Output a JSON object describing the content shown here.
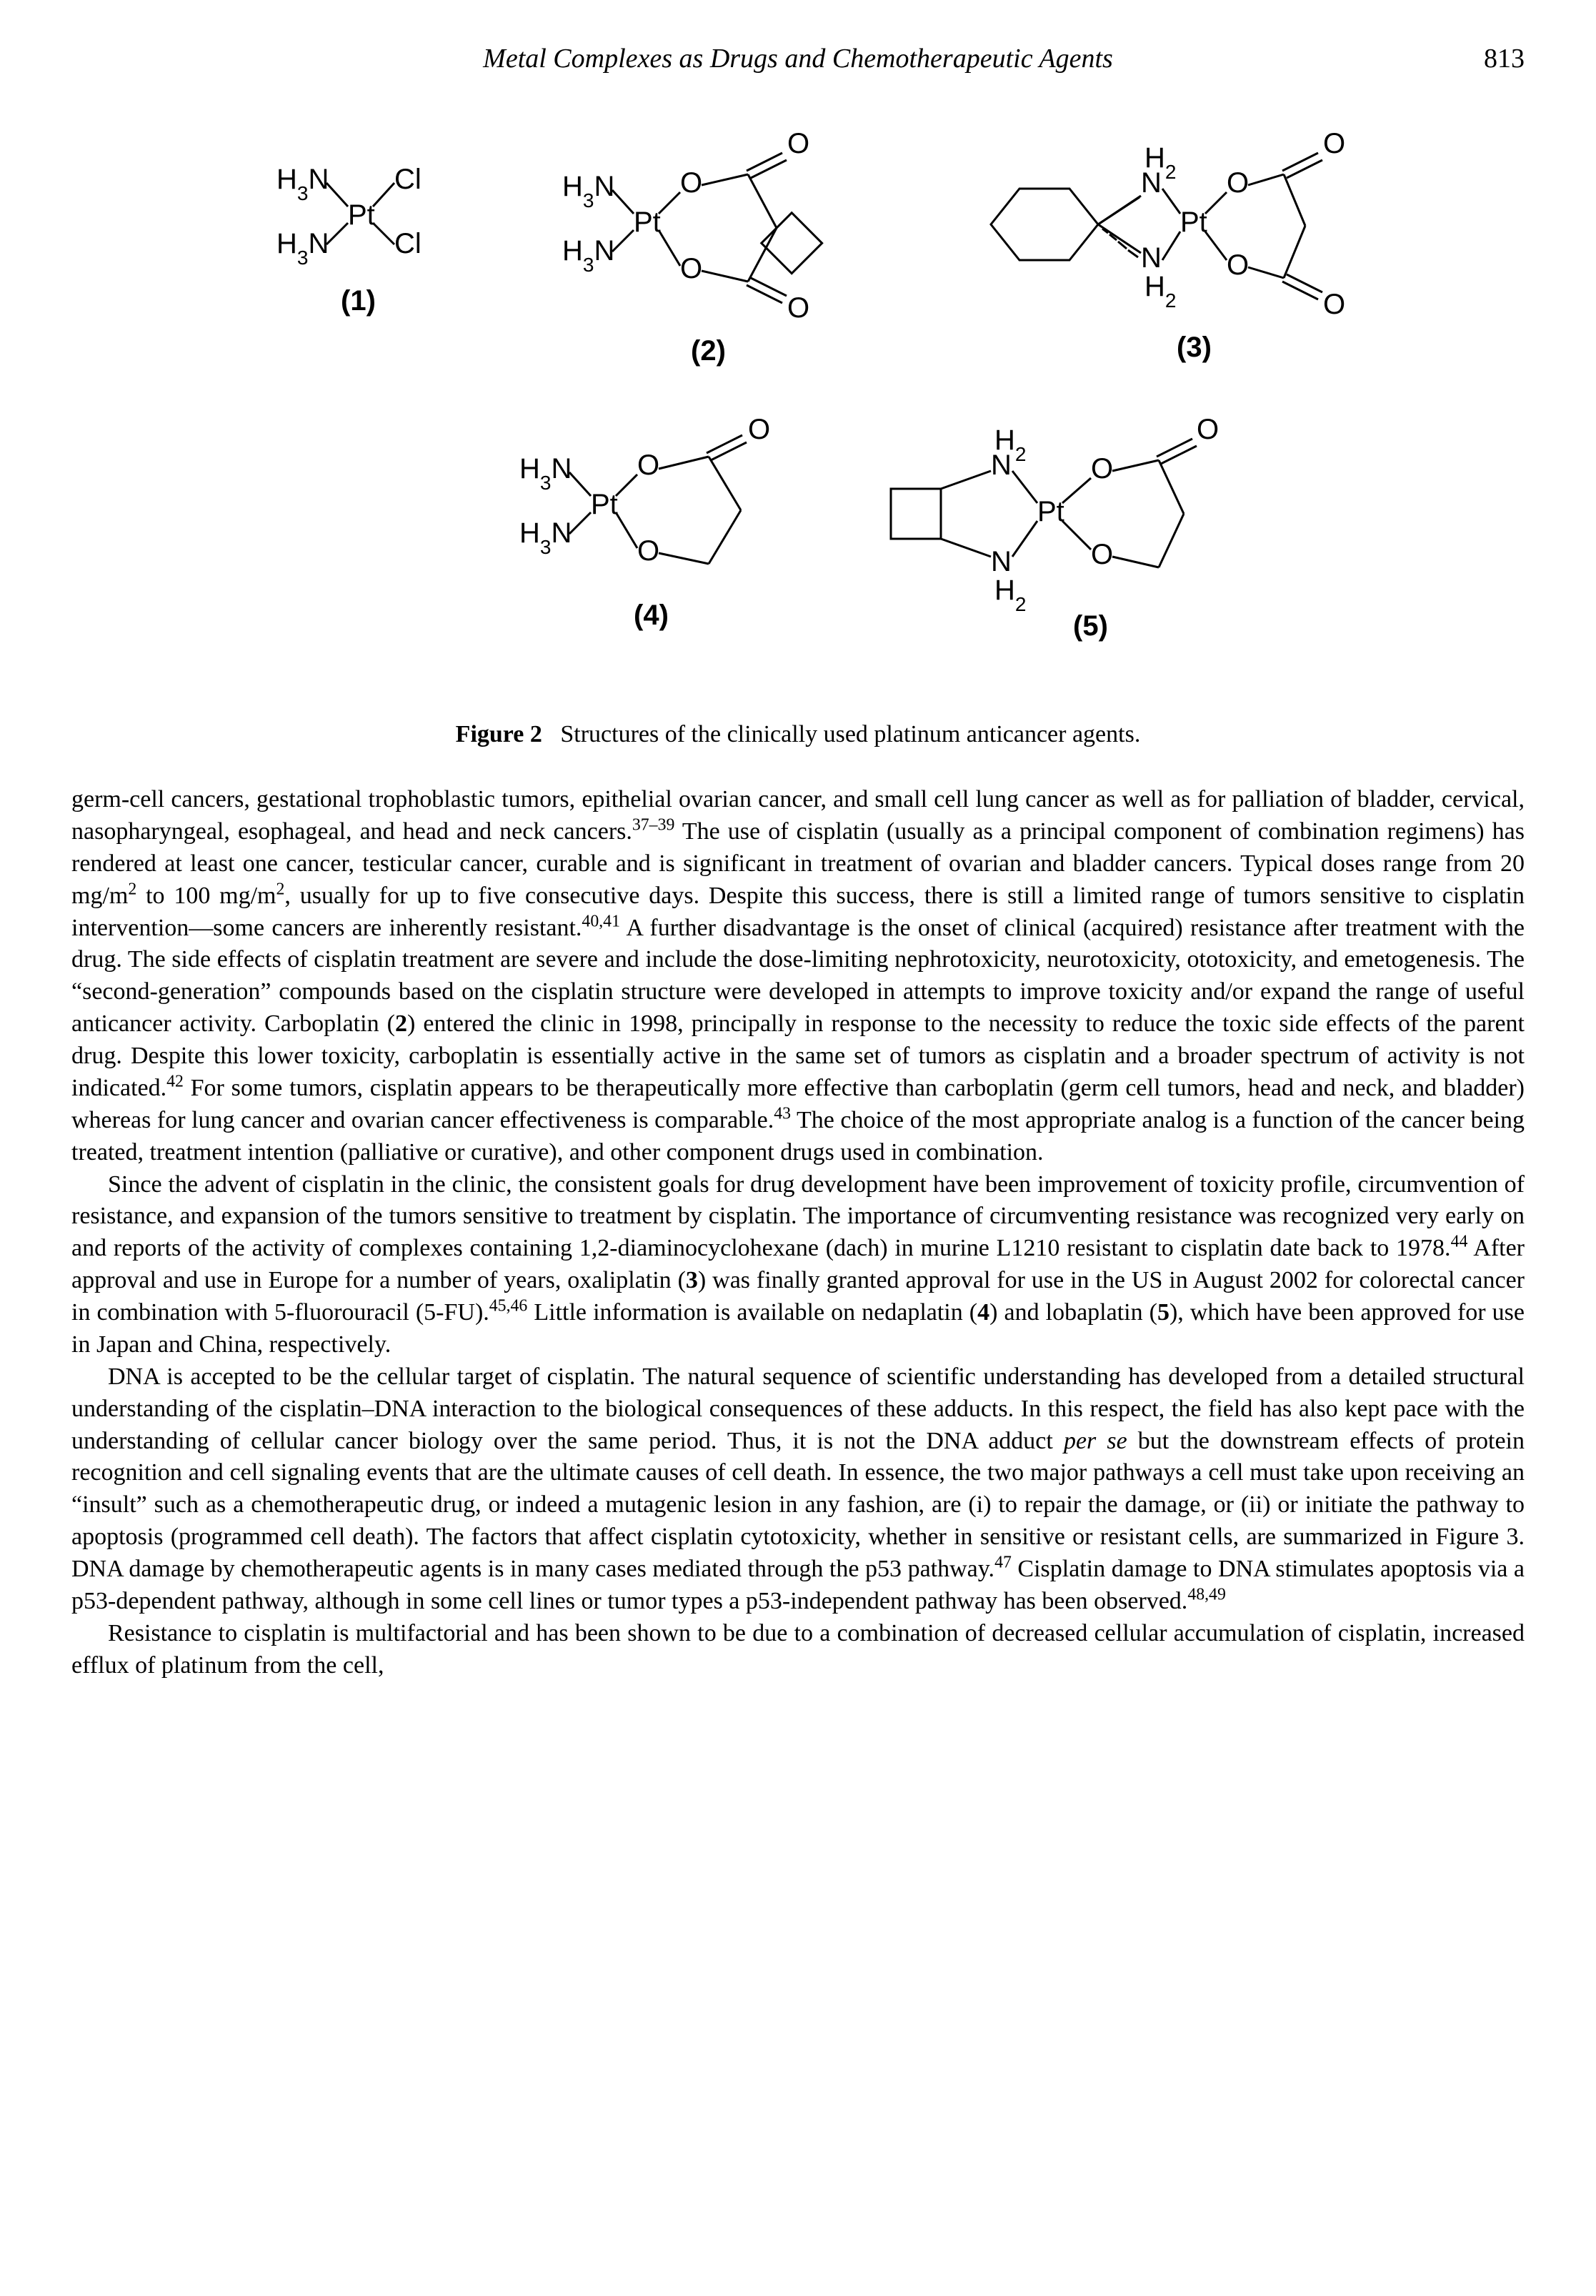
{
  "header": {
    "running_title": "Metal Complexes as Drugs and Chemotherapeutic Agents",
    "page_number": "813"
  },
  "figure": {
    "caption_label": "Figure 2",
    "caption_text": "Structures of the clinically used platinum anticancer agents.",
    "label_font": {
      "family": "Helvetica, Arial, sans-serif",
      "weight": "normal"
    },
    "bond_stroke": "#000000",
    "bond_width": 3,
    "label_color": "#000000",
    "labels": {
      "formula_H3N": "H3N",
      "Cl": "Cl",
      "Pt": "Pt",
      "O": "O",
      "N": "N",
      "H2": "H2"
    },
    "compound_labels": [
      "(1)",
      "(2)",
      "(3)",
      "(4)",
      "(5)"
    ],
    "row1": {
      "count": 3
    },
    "row2": {
      "count": 2
    }
  },
  "text": {
    "para1_html": "germ-cell cancers, gestational trophoblastic tumors, epithelial ovarian cancer, and small cell lung cancer as well as for palliation of bladder, cervical, nasopharyngeal, esophageal, and head and neck cancers.<sup>37–39</sup> The use of cisplatin (usually as a principal component of combination regimens) has rendered at least one cancer, testicular cancer, curable and is significant in treatment of ovarian and bladder cancers. Typical doses range from 20 mg/m<sup>2</sup> to 100 mg/m<sup>2</sup>, usually for up to five consecutive days. Despite this success, there is still a limited range of tumors sensitive to cisplatin intervention—some cancers are inherently resistant.<sup>40,41</sup> A further disadvantage is the onset of clinical (acquired) resistance after treatment with the drug. The side effects of cisplatin treatment are severe and include the dose-limiting nephrotoxicity, neurotoxicity, ototoxicity, and emetogenesis. The “second-generation” compounds based on the cisplatin structure were developed in attempts to improve toxicity and/or expand the range of useful anticancer activity. Carboplatin (<b>2</b>) entered the clinic in 1998, principally in response to the necessity to reduce the toxic side effects of the parent drug. Despite this lower toxicity, carboplatin is essentially active in the same set of tumors as cisplatin and a broader spectrum of activity is not indicated.<sup>42</sup> For some tumors, cisplatin appears to be therapeutically more effective than carboplatin (germ cell tumors, head and neck, and bladder) whereas for lung cancer and ovarian cancer effectiveness is comparable.<sup>43</sup> The choice of the most appropriate analog is a function of the cancer being treated, treatment intention (palliative or curative), and other component drugs used in combination.",
    "para2_html": "Since the advent of cisplatin in the clinic, the consistent goals for drug development have been improvement of toxicity profile, circumvention of resistance, and expansion of the tumors sensitive to treatment by cisplatin. The importance of circumventing resistance was recognized very early on and reports of the activity of complexes containing 1,2-diaminocyclohexane (dach) in murine L1210 resistant to cisplatin date back to 1978.<sup>44</sup> After approval and use in Europe for a number of years, oxaliplatin (<b>3</b>) was finally granted approval for use in the US in August 2002 for colorectal cancer in combination with 5-fluorouracil (5-FU).<sup>45,46</sup> Little information is available on nedaplatin (<b>4</b>) and lobaplatin (<b>5</b>), which have been approved for use in Japan and China, respectively.",
    "para3_html": "DNA is accepted to be the cellular target of cisplatin. The natural sequence of scientific understanding has developed from a detailed structural understanding of the cisplatin–DNA interaction to the biological consequences of these adducts. In this respect, the field has also kept pace with the understanding of cellular cancer biology over the same period. Thus, it is not the DNA adduct <span class=\"ital\">per se</span> but the downstream effects of protein recognition and cell signaling events that are the ultimate causes of cell death. In essence, the two major pathways a cell must take upon receiving an “insult” such as a chemotherapeutic drug, or indeed a mutagenic lesion in any fashion, are (i) to repair the damage, or (ii) or initiate the pathway to apoptosis (programmed cell death). The factors that affect cisplatin cytotoxicity, whether in sensitive or resistant cells, are summarized in Figure 3. DNA damage by chemotherapeutic agents is in many cases mediated through the p53 pathway.<sup>47</sup> Cisplatin damage to DNA stimulates apoptosis via a p53-dependent pathway, although in some cell lines or tumor types a p53-independent pathway has been observed.<sup>48,49</sup>",
    "para4_html": "Resistance to cisplatin is multifactorial and has been shown to be due to a combination of decreased cellular accumulation of cisplatin, increased efflux of platinum from the cell,"
  }
}
